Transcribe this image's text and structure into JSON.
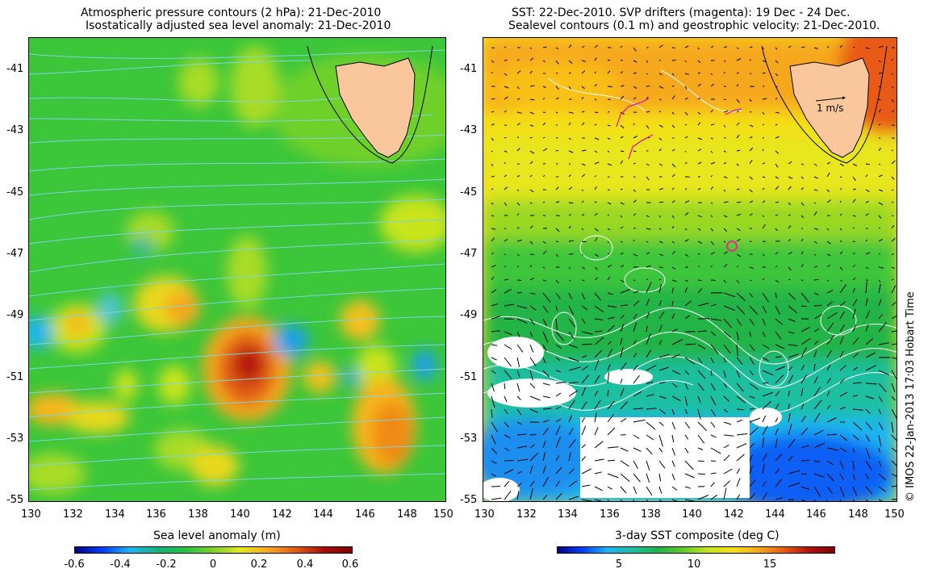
{
  "left_panel": {
    "title_line1": "Atmospheric pressure contours (2 hPa): 21-Dec-2010",
    "title_line2": "Isostatically adjusted sea level anomaly: 21-Dec-2010",
    "colorbar_label": "Sea level anomaly (m)",
    "colorbar_ticks": [
      "-0.6",
      "-0.4",
      "-0.2",
      "0",
      "0.2",
      "0.4",
      "0.6"
    ],
    "x_ticks": [
      "130",
      "132",
      "134",
      "136",
      "138",
      "140",
      "142",
      "144",
      "146",
      "148",
      "150"
    ],
    "y_ticks": [
      "-41",
      "-43",
      "-45",
      "-47",
      "-49",
      "-51",
      "-53",
      "-55"
    ]
  },
  "right_panel": {
    "title_line1": "SST: 22-Dec-2010. SVP drifters (magenta): 19 Dec - 24 Dec.",
    "title_line2": "Sealevel contours (0.1 m) and geostrophic velocity: 21-Dec-2010.",
    "colorbar_label": "3-day SST composite (deg C)",
    "colorbar_ticks": [
      "5",
      "10",
      "15"
    ],
    "x_ticks": [
      "130",
      "132",
      "134",
      "136",
      "138",
      "140",
      "142",
      "144",
      "146",
      "148",
      "150"
    ],
    "y_ticks": [
      "-41",
      "-43",
      "-45",
      "-47",
      "-49",
      "-51",
      "-53",
      "-55"
    ],
    "velocity_scale_label": "1 m/s"
  },
  "credit": "© IMOS 22-Jan-2013 17:03 Hobart Time",
  "map_extent": {
    "lon": [
      130,
      150
    ],
    "lat": [
      -55,
      -40.2
    ]
  },
  "colors": {
    "land": "#f9c79b",
    "drifter": "#e0308f",
    "pressure_contour": "#7fd4e0",
    "sla_colorbar": [
      "#00007f",
      "#0040ff",
      "#1fb6f0",
      "#12b37a",
      "#29c03f",
      "#7fd32a",
      "#e8e61e",
      "#f7a620",
      "#e05a12",
      "#a80d0d",
      "#7f0000"
    ],
    "sst_colorbar": [
      "#00007f",
      "#0040ff",
      "#1fb6f0",
      "#1fbfa0",
      "#20b446",
      "#62cc2a",
      "#c8e41b",
      "#f5de16",
      "#f6a81a",
      "#e85a13",
      "#b31010",
      "#7f0000"
    ]
  }
}
